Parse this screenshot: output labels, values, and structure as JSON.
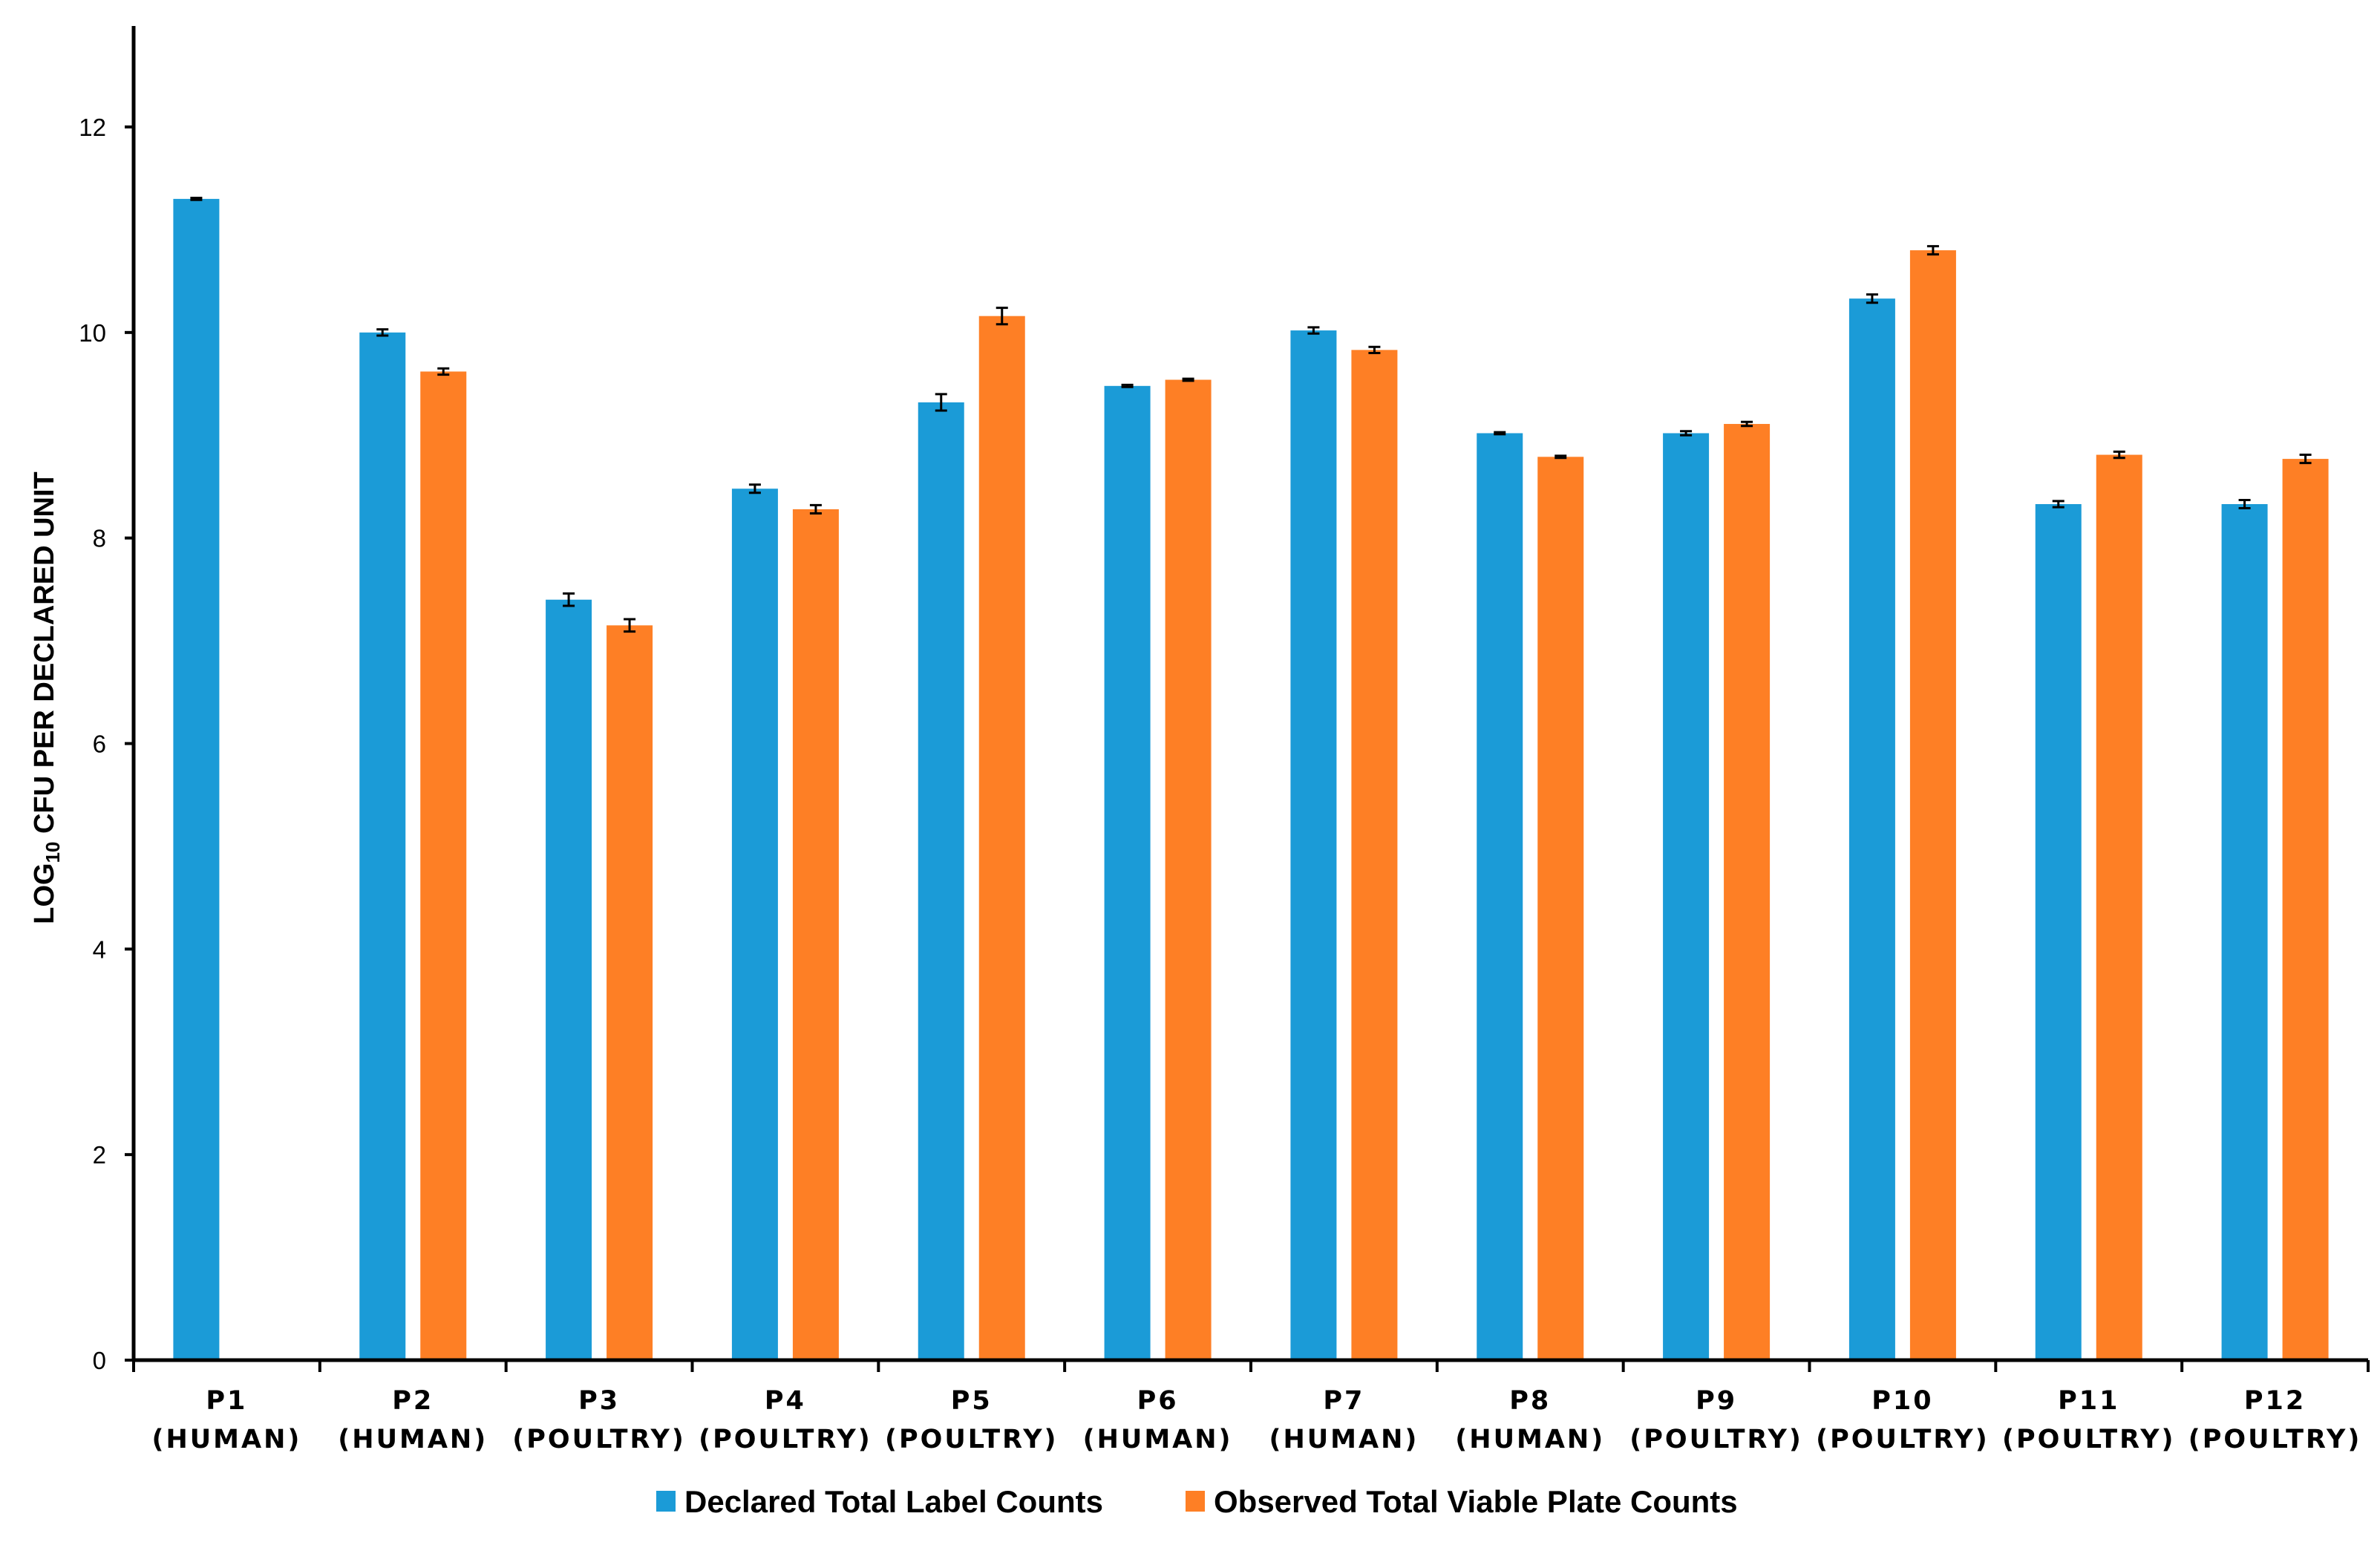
{
  "chart_data": {
    "type": "bar",
    "title": "",
    "ylabel_main": "LOG",
    "ylabel_sub": "10",
    "ylabel_rest": " CFU PER DECLARED UNIT",
    "xlabel": "",
    "ylim": [
      0,
      13
    ],
    "yticks": [
      0,
      2,
      4,
      6,
      8,
      10,
      12
    ],
    "grid": false,
    "legend_position": "bottom-center",
    "categories": [
      {
        "name": "P1",
        "group": "(HUMAN)"
      },
      {
        "name": "P2",
        "group": "(HUMAN)"
      },
      {
        "name": "P3",
        "group": "(POULTRY)"
      },
      {
        "name": "P4",
        "group": "(POULTRY)"
      },
      {
        "name": "P5",
        "group": "(POULTRY)"
      },
      {
        "name": "P6",
        "group": "(HUMAN)"
      },
      {
        "name": "P7",
        "group": "(HUMAN)"
      },
      {
        "name": "P8",
        "group": "(HUMAN)"
      },
      {
        "name": "P9",
        "group": "(POULTRY)"
      },
      {
        "name": "P10",
        "group": "(POULTRY)"
      },
      {
        "name": "P11",
        "group": "(POULTRY)"
      },
      {
        "name": "P12",
        "group": "(POULTRY)"
      }
    ],
    "series": [
      {
        "name": "Declared Total Label Counts",
        "color": "#1b9bd7",
        "values": [
          11.3,
          10.0,
          7.4,
          8.48,
          9.32,
          9.48,
          10.02,
          9.02,
          9.02,
          10.33,
          8.33,
          8.33
        ],
        "errors": [
          0.01,
          0.03,
          0.06,
          0.04,
          0.08,
          0.01,
          0.03,
          0.01,
          0.02,
          0.04,
          0.03,
          0.04
        ]
      },
      {
        "name": "Observed Total Viable Plate Counts",
        "color": "#fe7f25",
        "values": [
          null,
          9.62,
          7.15,
          8.28,
          10.16,
          9.54,
          9.83,
          8.79,
          9.11,
          10.8,
          8.81,
          8.77
        ],
        "errors": [
          null,
          0.03,
          0.06,
          0.04,
          0.08,
          0.01,
          0.03,
          0.01,
          0.02,
          0.04,
          0.03,
          0.04
        ]
      }
    ]
  }
}
